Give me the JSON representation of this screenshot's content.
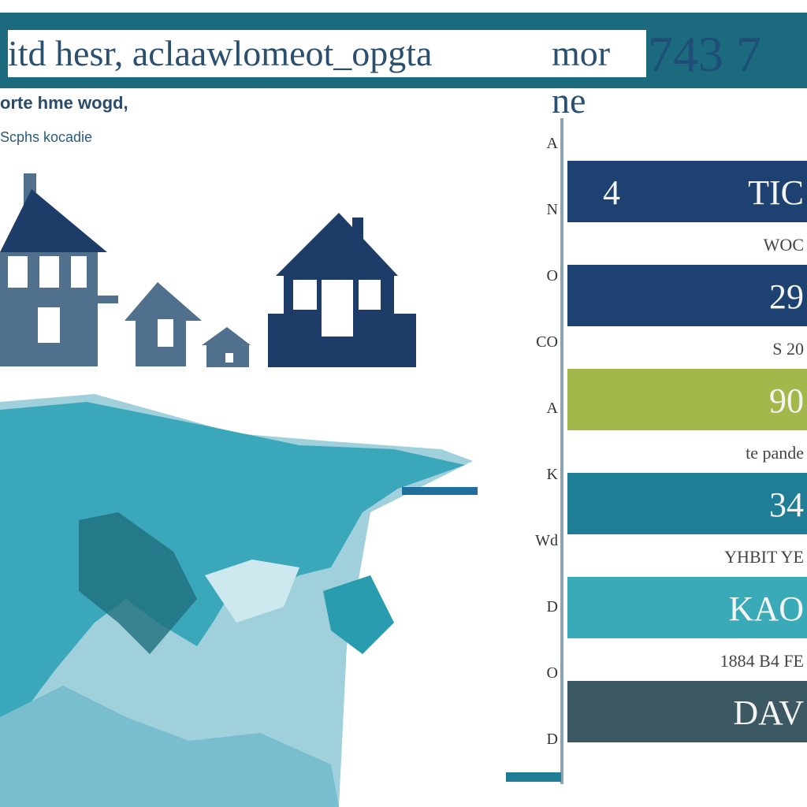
{
  "header": {
    "title": "itd hesr, aclaawlomeot_opgta",
    "title_suffix": "mor ne",
    "number": "743 7"
  },
  "legend": {
    "line1": "orte hme wogd,",
    "line2": "Scphs kocadie"
  },
  "colors": {
    "title_bar": "#1c6a7d",
    "navy": "#1d4272",
    "olive": "#a2b84a",
    "teal": "#1f7e95",
    "aqua": "#3aa9b8",
    "slate": "#3c5862",
    "map_teal": "#3aa7bb",
    "house_navy": "#1d3d68",
    "house_slate": "#50708e"
  },
  "chart_data": {
    "type": "bar",
    "orientation": "horizontal",
    "y_tick_labels": [
      "A",
      "N",
      "O",
      "CO",
      "A",
      "K",
      "Wd",
      "D",
      "O",
      "D"
    ],
    "bars": [
      {
        "label": "4",
        "right_label": "TIC",
        "sublabel": "WOC",
        "color": "#1d4272"
      },
      {
        "label": "",
        "right_label": "29",
        "sublabel": "S 20",
        "color": "#1d4272"
      },
      {
        "label": "",
        "right_label": "90",
        "sublabel": "te pande",
        "color": "#a2b84a"
      },
      {
        "label": "",
        "right_label": "34",
        "sublabel": "YHBIT YE",
        "color": "#1f7e95"
      },
      {
        "label": "",
        "right_label": "KAO",
        "sublabel": "1884 B4 FE",
        "color": "#3aa9b8"
      },
      {
        "label": "",
        "right_label": "DAV",
        "sublabel": "",
        "color": "#3c5862"
      }
    ]
  }
}
